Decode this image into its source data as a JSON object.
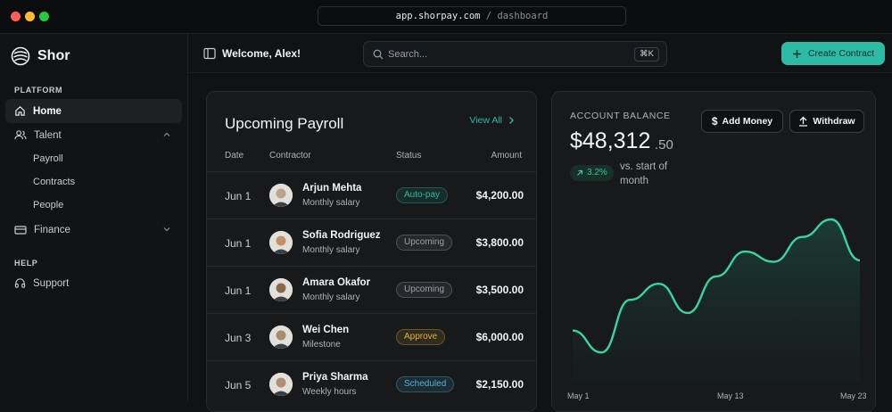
{
  "browser": {
    "url_host": "app.shorpay.com",
    "url_path": " / dashboard"
  },
  "sidebar": {
    "brand": "Shor",
    "platform_label": "PLATFORM",
    "help_label": "HELP",
    "items": [
      {
        "label": "Home",
        "icon": "home-icon"
      },
      {
        "label": "Talent",
        "icon": "users-icon"
      },
      {
        "label": "Payroll"
      },
      {
        "label": "Contracts"
      },
      {
        "label": "People"
      },
      {
        "label": "Finance",
        "icon": "card-icon"
      },
      {
        "label": "Support",
        "icon": "headphones-icon"
      }
    ]
  },
  "header": {
    "welcome": "Welcome, Alex!",
    "search_placeholder": "Search...",
    "shortcut": "⌘K",
    "create_label": "Create Contract"
  },
  "payroll": {
    "title": "Upcoming Payroll",
    "view_all": "View All",
    "columns": [
      "Date",
      "Contractor",
      "Status",
      "Amount"
    ],
    "rows": [
      {
        "date": "Jun 1",
        "name": "Arjun Mehta",
        "type": "Monthly salary",
        "status": "Auto-pay",
        "amount": "$4,200.00"
      },
      {
        "date": "Jun 1",
        "name": "Sofia Rodriguez",
        "type": "Monthly salary",
        "status": "Upcoming",
        "amount": "$3,800.00"
      },
      {
        "date": "Jun 1",
        "name": "Amara Okafor",
        "type": "Monthly salary",
        "status": "Upcoming",
        "amount": "$3,500.00"
      },
      {
        "date": "Jun 3",
        "name": "Wei Chen",
        "type": "Milestone",
        "status": "Approve",
        "amount": "$6,000.00"
      },
      {
        "date": "Jun 5",
        "name": "Priya Sharma",
        "type": "Weekly hours",
        "status": "Scheduled",
        "amount": "$2,150.00"
      }
    ],
    "status_colors": {
      "Auto-pay": "#2bbba6",
      "Upcoming": "#9aa0a6",
      "Approve": "#e0b23a",
      "Scheduled": "#4fb3d9"
    }
  },
  "balance": {
    "label": "ACCOUNT BALANCE",
    "amount": "$48,312",
    "cents": ".50",
    "change": "3.2%",
    "change_note": "vs. start of month",
    "add_money": "Add Money",
    "withdraw": "Withdraw"
  },
  "chart_data": {
    "type": "area",
    "x_labels": [
      "May 1",
      "May 13",
      "May 23"
    ],
    "values": [
      0.24,
      0.09,
      0.45,
      0.56,
      0.36,
      0.61,
      0.78,
      0.71,
      0.88,
      1.0,
      0.72
    ],
    "color": "#3ad3a8"
  }
}
